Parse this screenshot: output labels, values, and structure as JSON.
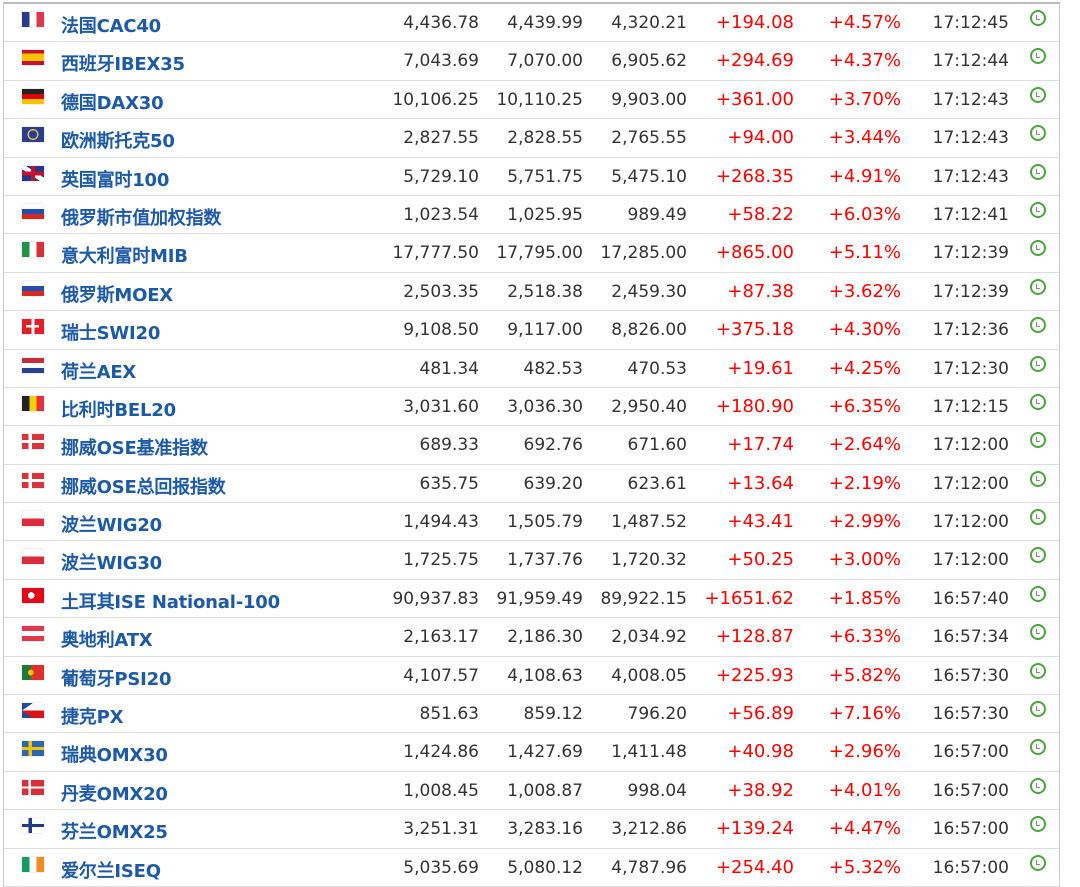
{
  "colors": {
    "name": "#1d5aa6",
    "change": "#ff0000",
    "clock": "#4aa63c"
  },
  "rows": [
    {
      "flag": "fr",
      "name": "法国CAC40",
      "last": "4,436.78",
      "high": "4,439.99",
      "low": "4,320.21",
      "change": "+194.08",
      "pct": "+4.57%",
      "time": "17:12:45"
    },
    {
      "flag": "es",
      "name": "西班牙IBEX35",
      "last": "7,043.69",
      "high": "7,070.00",
      "low": "6,905.62",
      "change": "+294.69",
      "pct": "+4.37%",
      "time": "17:12:44"
    },
    {
      "flag": "de",
      "name": "德国DAX30",
      "last": "10,106.25",
      "high": "10,110.25",
      "low": "9,903.00",
      "change": "+361.00",
      "pct": "+3.70%",
      "time": "17:12:43"
    },
    {
      "flag": "eu",
      "name": "欧洲斯托克50",
      "last": "2,827.55",
      "high": "2,828.55",
      "low": "2,765.55",
      "change": "+94.00",
      "pct": "+3.44%",
      "time": "17:12:43"
    },
    {
      "flag": "gb",
      "name": "英国富时100",
      "last": "5,729.10",
      "high": "5,751.75",
      "low": "5,475.10",
      "change": "+268.35",
      "pct": "+4.91%",
      "time": "17:12:43"
    },
    {
      "flag": "ru",
      "name": "俄罗斯市值加权指数",
      "last": "1,023.54",
      "high": "1,025.95",
      "low": "989.49",
      "change": "+58.22",
      "pct": "+6.03%",
      "time": "17:12:41"
    },
    {
      "flag": "it",
      "name": "意大利富时MIB",
      "last": "17,777.50",
      "high": "17,795.00",
      "low": "17,285.00",
      "change": "+865.00",
      "pct": "+5.11%",
      "time": "17:12:39"
    },
    {
      "flag": "ru",
      "name": "俄罗斯MOEX",
      "last": "2,503.35",
      "high": "2,518.38",
      "low": "2,459.30",
      "change": "+87.38",
      "pct": "+3.62%",
      "time": "17:12:39"
    },
    {
      "flag": "ch",
      "name": "瑞士SWI20",
      "last": "9,108.50",
      "high": "9,117.00",
      "low": "8,826.00",
      "change": "+375.18",
      "pct": "+4.30%",
      "time": "17:12:36"
    },
    {
      "flag": "nl",
      "name": "荷兰AEX",
      "last": "481.34",
      "high": "482.53",
      "low": "470.53",
      "change": "+19.61",
      "pct": "+4.25%",
      "time": "17:12:30"
    },
    {
      "flag": "be",
      "name": "比利时BEL20",
      "last": "3,031.60",
      "high": "3,036.30",
      "low": "2,950.40",
      "change": "+180.90",
      "pct": "+6.35%",
      "time": "17:12:15"
    },
    {
      "flag": "no",
      "name": "挪威OSE基准指数",
      "last": "689.33",
      "high": "692.76",
      "low": "671.60",
      "change": "+17.74",
      "pct": "+2.64%",
      "time": "17:12:00"
    },
    {
      "flag": "no",
      "name": "挪威OSE总回报指数",
      "last": "635.75",
      "high": "639.20",
      "low": "623.61",
      "change": "+13.64",
      "pct": "+2.19%",
      "time": "17:12:00"
    },
    {
      "flag": "pl",
      "name": "波兰WIG20",
      "last": "1,494.43",
      "high": "1,505.79",
      "low": "1,487.52",
      "change": "+43.41",
      "pct": "+2.99%",
      "time": "17:12:00"
    },
    {
      "flag": "pl",
      "name": "波兰WIG30",
      "last": "1,725.75",
      "high": "1,737.76",
      "low": "1,720.32",
      "change": "+50.25",
      "pct": "+3.00%",
      "time": "17:12:00"
    },
    {
      "flag": "tr",
      "name": "土耳其ISE National-100",
      "last": "90,937.83",
      "high": "91,959.49",
      "low": "89,922.15",
      "change": "+1651.62",
      "pct": "+1.85%",
      "time": "16:57:40"
    },
    {
      "flag": "at",
      "name": "奥地利ATX",
      "last": "2,163.17",
      "high": "2,186.30",
      "low": "2,034.92",
      "change": "+128.87",
      "pct": "+6.33%",
      "time": "16:57:34"
    },
    {
      "flag": "pt",
      "name": "葡萄牙PSI20",
      "last": "4,107.57",
      "high": "4,108.63",
      "low": "4,008.05",
      "change": "+225.93",
      "pct": "+5.82%",
      "time": "16:57:30"
    },
    {
      "flag": "cz",
      "name": "捷克PX",
      "last": "851.63",
      "high": "859.12",
      "low": "796.20",
      "change": "+56.89",
      "pct": "+7.16%",
      "time": "16:57:30"
    },
    {
      "flag": "se",
      "name": "瑞典OMX30",
      "last": "1,424.86",
      "high": "1,427.69",
      "low": "1,411.48",
      "change": "+40.98",
      "pct": "+2.96%",
      "time": "16:57:00"
    },
    {
      "flag": "dk",
      "name": "丹麦OMX20",
      "last": "1,008.45",
      "high": "1,008.87",
      "low": "998.04",
      "change": "+38.92",
      "pct": "+4.01%",
      "time": "16:57:00"
    },
    {
      "flag": "fi",
      "name": "芬兰OMX25",
      "last": "3,251.31",
      "high": "3,283.16",
      "low": "3,212.86",
      "change": "+139.24",
      "pct": "+4.47%",
      "time": "16:57:00"
    },
    {
      "flag": "ie",
      "name": "爱尔兰ISEQ",
      "last": "5,035.69",
      "high": "5,080.12",
      "low": "4,787.96",
      "change": "+254.40",
      "pct": "+5.32%",
      "time": "16:57:00"
    }
  ]
}
